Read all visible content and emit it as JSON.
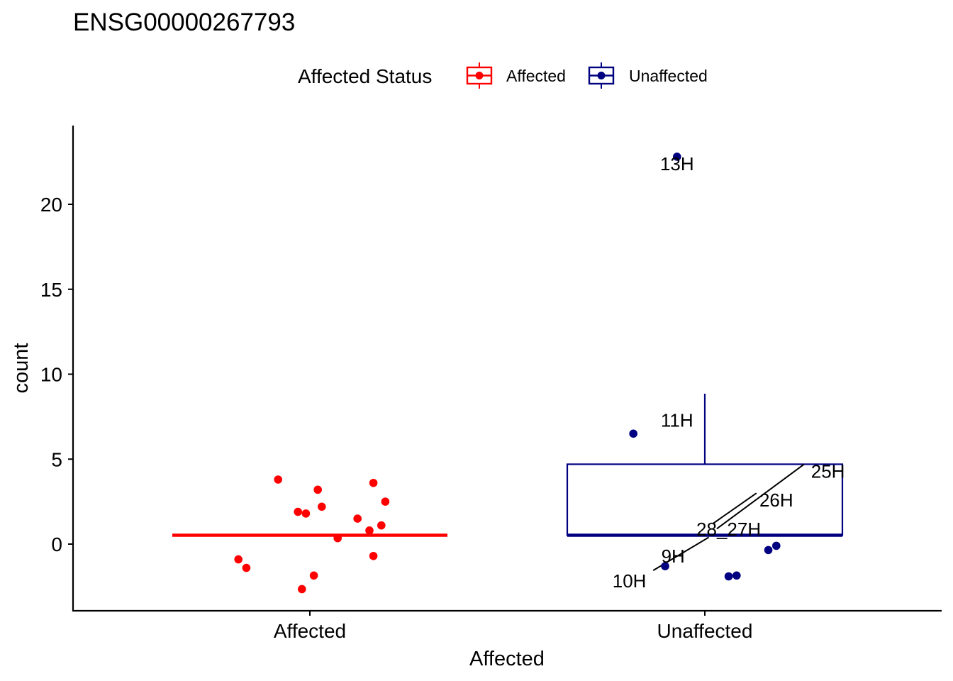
{
  "chart_data": {
    "type": "box",
    "title": "ENSG00000267793",
    "xlabel": "Affected",
    "ylabel": "count",
    "categories": [
      "Affected",
      "Unaffected"
    ],
    "ylim": [
      -4,
      24.5
    ],
    "yticks": [
      0,
      5,
      10,
      15,
      20
    ],
    "grid": false,
    "legend": {
      "title": "Affected Status",
      "position": "top",
      "entries": [
        {
          "label": "Affected",
          "color": "#ff0000"
        },
        {
          "label": "Unaffected",
          "color": "#000080"
        }
      ]
    },
    "series": [
      {
        "name": "Affected",
        "color": "#ff0000",
        "box": {
          "min": 0.52,
          "q1": 0.52,
          "median": 0.52,
          "q3": 0.52,
          "max": 0.52
        },
        "points": [
          {
            "x": -0.08,
            "y": 3.8
          },
          {
            "x": 0.02,
            "y": 3.2
          },
          {
            "x": 0.16,
            "y": 3.6
          },
          {
            "x": 0.19,
            "y": 2.5
          },
          {
            "x": 0.03,
            "y": 2.2
          },
          {
            "x": -0.03,
            "y": 1.9
          },
          {
            "x": -0.01,
            "y": 1.8
          },
          {
            "x": 0.12,
            "y": 1.5
          },
          {
            "x": 0.18,
            "y": 1.1
          },
          {
            "x": 0.15,
            "y": 0.8
          },
          {
            "x": 0.07,
            "y": 0.35
          },
          {
            "x": -0.18,
            "y": -0.9
          },
          {
            "x": -0.16,
            "y": -1.4
          },
          {
            "x": 0.16,
            "y": -0.7
          },
          {
            "x": 0.01,
            "y": -1.85
          },
          {
            "x": -0.02,
            "y": -2.65
          }
        ]
      },
      {
        "name": "Unaffected",
        "color": "#000080",
        "box": {
          "min": 0.52,
          "q1": 0.52,
          "median": 0.52,
          "q3": 4.7,
          "max": 8.85
        },
        "points": [
          {
            "x": -0.07,
            "y": 22.8,
            "label": "13H"
          },
          {
            "x": -0.18,
            "y": 6.5,
            "label": "11H"
          },
          {
            "x": 0.18,
            "y": -0.1
          },
          {
            "x": 0.16,
            "y": -0.35
          },
          {
            "x": 0.08,
            "y": -1.85
          },
          {
            "x": 0.06,
            "y": -1.9
          },
          {
            "x": -0.1,
            "y": -1.3
          }
        ],
        "labels": [
          {
            "text": "13H",
            "x": -0.07,
            "y": 22.8
          },
          {
            "text": "11H",
            "x": -0.07,
            "y": 7.7
          },
          {
            "text": "25H",
            "x": 0.31,
            "y": 4.7
          },
          {
            "text": "26H",
            "x": 0.18,
            "y": 3.0
          },
          {
            "text": "28_27H",
            "x": 0.06,
            "y": 1.3
          },
          {
            "text": "9H",
            "x": -0.08,
            "y": -0.3
          },
          {
            "text": "10H",
            "x": -0.19,
            "y": -1.75
          }
        ]
      }
    ]
  }
}
